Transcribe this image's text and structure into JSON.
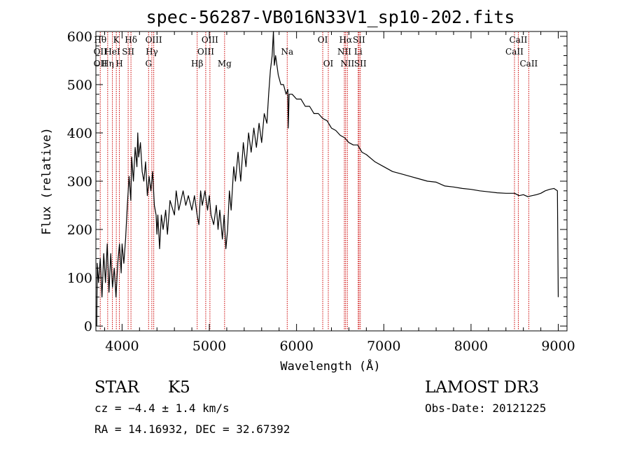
{
  "chart_data": {
    "type": "line",
    "title": "spec-56287-VB016N33V1_sp10-202.fits",
    "xlabel": "Wavelength (Å)",
    "ylabel": "Flux (relative)",
    "xlim": [
      3700,
      9100
    ],
    "ylim": [
      -10,
      610
    ],
    "x_ticks": [
      4000,
      5000,
      6000,
      7000,
      8000,
      9000
    ],
    "y_ticks": [
      0,
      100,
      200,
      300,
      400,
      500,
      600
    ],
    "x_minor_step": 200,
    "y_minor_step": 20,
    "grid": false,
    "series": [
      {
        "name": "spectrum",
        "points": [
          [
            3710,
            0
          ],
          [
            3715,
            130
          ],
          [
            3730,
            90
          ],
          [
            3750,
            140
          ],
          [
            3770,
            60
          ],
          [
            3790,
            150
          ],
          [
            3810,
            90
          ],
          [
            3830,
            170
          ],
          [
            3850,
            70
          ],
          [
            3870,
            150
          ],
          [
            3890,
            80
          ],
          [
            3910,
            120
          ],
          [
            3930,
            60
          ],
          [
            3950,
            130
          ],
          [
            3970,
            170
          ],
          [
            3990,
            110
          ],
          [
            4000,
            170
          ],
          [
            4020,
            130
          ],
          [
            4040,
            180
          ],
          [
            4060,
            250
          ],
          [
            4080,
            310
          ],
          [
            4100,
            260
          ],
          [
            4110,
            350
          ],
          [
            4130,
            300
          ],
          [
            4150,
            370
          ],
          [
            4170,
            330
          ],
          [
            4180,
            400
          ],
          [
            4190,
            350
          ],
          [
            4210,
            380
          ],
          [
            4230,
            320
          ],
          [
            4250,
            300
          ],
          [
            4270,
            340
          ],
          [
            4290,
            270
          ],
          [
            4310,
            310
          ],
          [
            4330,
            280
          ],
          [
            4350,
            320
          ],
          [
            4370,
            250
          ],
          [
            4390,
            230
          ],
          [
            4400,
            190
          ],
          [
            4410,
            230
          ],
          [
            4430,
            160
          ],
          [
            4450,
            230
          ],
          [
            4470,
            200
          ],
          [
            4500,
            240
          ],
          [
            4520,
            190
          ],
          [
            4550,
            260
          ],
          [
            4600,
            230
          ],
          [
            4620,
            280
          ],
          [
            4650,
            240
          ],
          [
            4700,
            280
          ],
          [
            4730,
            250
          ],
          [
            4760,
            270
          ],
          [
            4800,
            240
          ],
          [
            4830,
            270
          ],
          [
            4860,
            230
          ],
          [
            4880,
            210
          ],
          [
            4900,
            280
          ],
          [
            4920,
            250
          ],
          [
            4950,
            280
          ],
          [
            4980,
            240
          ],
          [
            5000,
            270
          ],
          [
            5020,
            230
          ],
          [
            5050,
            210
          ],
          [
            5080,
            250
          ],
          [
            5100,
            200
          ],
          [
            5120,
            240
          ],
          [
            5150,
            180
          ],
          [
            5170,
            230
          ],
          [
            5190,
            160
          ],
          [
            5210,
            200
          ],
          [
            5230,
            280
          ],
          [
            5250,
            240
          ],
          [
            5280,
            330
          ],
          [
            5300,
            300
          ],
          [
            5330,
            360
          ],
          [
            5360,
            300
          ],
          [
            5390,
            380
          ],
          [
            5420,
            330
          ],
          [
            5450,
            400
          ],
          [
            5480,
            360
          ],
          [
            5510,
            410
          ],
          [
            5540,
            370
          ],
          [
            5570,
            420
          ],
          [
            5600,
            380
          ],
          [
            5630,
            440
          ],
          [
            5660,
            420
          ],
          [
            5680,
            480
          ],
          [
            5700,
            530
          ],
          [
            5720,
            560
          ],
          [
            5735,
            610
          ],
          [
            5745,
            540
          ],
          [
            5760,
            560
          ],
          [
            5790,
            520
          ],
          [
            5820,
            500
          ],
          [
            5850,
            500
          ],
          [
            5880,
            480
          ],
          [
            5900,
            490
          ],
          [
            5905,
            410
          ],
          [
            5915,
            480
          ],
          [
            5950,
            480
          ],
          [
            6000,
            470
          ],
          [
            6050,
            470
          ],
          [
            6100,
            455
          ],
          [
            6150,
            455
          ],
          [
            6200,
            440
          ],
          [
            6250,
            440
          ],
          [
            6300,
            430
          ],
          [
            6350,
            425
          ],
          [
            6400,
            410
          ],
          [
            6450,
            405
          ],
          [
            6500,
            395
          ],
          [
            6550,
            390
          ],
          [
            6600,
            380
          ],
          [
            6650,
            375
          ],
          [
            6700,
            375
          ],
          [
            6750,
            360
          ],
          [
            6800,
            355
          ],
          [
            6900,
            340
          ],
          [
            7000,
            330
          ],
          [
            7100,
            320
          ],
          [
            7200,
            315
          ],
          [
            7300,
            310
          ],
          [
            7400,
            305
          ],
          [
            7500,
            300
          ],
          [
            7600,
            298
          ],
          [
            7700,
            290
          ],
          [
            7800,
            288
          ],
          [
            7900,
            285
          ],
          [
            8000,
            283
          ],
          [
            8100,
            280
          ],
          [
            8200,
            278
          ],
          [
            8300,
            276
          ],
          [
            8400,
            275
          ],
          [
            8500,
            275
          ],
          [
            8550,
            270
          ],
          [
            8600,
            272
          ],
          [
            8650,
            268
          ],
          [
            8700,
            270
          ],
          [
            8750,
            272
          ],
          [
            8800,
            275
          ],
          [
            8850,
            280
          ],
          [
            8900,
            283
          ],
          [
            8950,
            285
          ],
          [
            8990,
            280
          ],
          [
            9000,
            60
          ]
        ]
      }
    ],
    "line_markers": [
      {
        "wavelength": 3750,
        "labels": [
          {
            "text": "Hθ",
            "row": 1
          },
          {
            "text": "OII",
            "row": 2
          },
          {
            "text": "OII",
            "row": 3
          }
        ]
      },
      {
        "wavelength": 3835,
        "labels": [
          {
            "text": "Hη",
            "row": 3
          }
        ]
      },
      {
        "wavelength": 3889,
        "labels": [
          {
            "text": "HeI",
            "row": 2
          }
        ]
      },
      {
        "wavelength": 3934,
        "labels": [
          {
            "text": "K",
            "row": 1
          }
        ]
      },
      {
        "wavelength": 3969,
        "labels": [
          {
            "text": "H",
            "row": 3
          }
        ]
      },
      {
        "wavelength": 4070,
        "labels": [
          {
            "text": "SII",
            "row": 2
          }
        ]
      },
      {
        "wavelength": 4102,
        "labels": [
          {
            "text": "Hδ",
            "row": 1
          }
        ]
      },
      {
        "wavelength": 4304,
        "labels": [
          {
            "text": "G",
            "row": 3
          }
        ]
      },
      {
        "wavelength": 4341,
        "labels": [
          {
            "text": "Hγ",
            "row": 2
          }
        ]
      },
      {
        "wavelength": 4363,
        "labels": [
          {
            "text": "OIII",
            "row": 1
          }
        ]
      },
      {
        "wavelength": 4861,
        "labels": [
          {
            "text": "Hβ",
            "row": 3
          }
        ]
      },
      {
        "wavelength": 4959,
        "labels": [
          {
            "text": "OIII",
            "row": 2
          }
        ]
      },
      {
        "wavelength": 5007,
        "labels": [
          {
            "text": "OIII",
            "row": 1
          }
        ]
      },
      {
        "wavelength": 5175,
        "labels": [
          {
            "text": "Mg",
            "row": 3
          }
        ]
      },
      {
        "wavelength": 5893,
        "labels": [
          {
            "text": "Na",
            "row": 2
          }
        ]
      },
      {
        "wavelength": 6300,
        "labels": [
          {
            "text": "OI",
            "row": 1
          }
        ]
      },
      {
        "wavelength": 6364,
        "labels": [
          {
            "text": "OI",
            "row": 3
          }
        ]
      },
      {
        "wavelength": 6548,
        "labels": [
          {
            "text": "NII",
            "row": 2
          }
        ]
      },
      {
        "wavelength": 6563,
        "labels": [
          {
            "text": "Hα",
            "row": 1
          }
        ]
      },
      {
        "wavelength": 6583,
        "labels": [
          {
            "text": "NII",
            "row": 3
          }
        ]
      },
      {
        "wavelength": 6707,
        "labels": [
          {
            "text": "Li",
            "row": 2
          }
        ]
      },
      {
        "wavelength": 6716,
        "labels": [
          {
            "text": "SII",
            "row": 1
          }
        ]
      },
      {
        "wavelength": 6731,
        "labels": [
          {
            "text": "SII",
            "row": 3
          }
        ]
      },
      {
        "wavelength": 8498,
        "labels": [
          {
            "text": "CaII",
            "row": 2
          }
        ]
      },
      {
        "wavelength": 8542,
        "labels": [
          {
            "text": "CaII",
            "row": 1
          }
        ]
      },
      {
        "wavelength": 8662,
        "labels": [
          {
            "text": "CaII",
            "row": 3
          }
        ]
      }
    ]
  },
  "info": {
    "classification": "STAR",
    "subclass": "K5",
    "survey": "LAMOST DR3",
    "redshift_line": "cz = −4.4 ± 1.4 km/s",
    "obs_date_line": "Obs-Date: 20121225",
    "coords_line": "RA =  14.16932, DEC =  32.67392"
  },
  "colors": {
    "spectrum": "#000000",
    "marker_line": "#cc0000",
    "axes": "#000000"
  }
}
